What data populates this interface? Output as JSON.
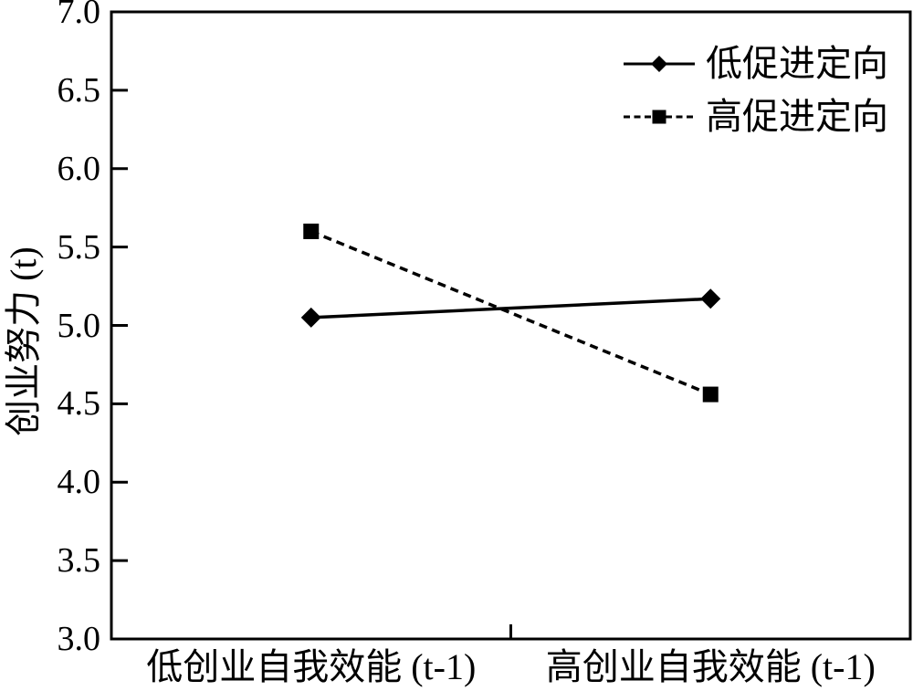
{
  "figure": {
    "background_color": "#ffffff",
    "axis_color": "#000000",
    "text_color": "#000000"
  },
  "chart_data": {
    "type": "line",
    "title": "",
    "xlabel": "",
    "ylabel": "创业努力 (t)",
    "categories": [
      "低创业自我效能 (t-1)",
      "高创业自我效能 (t-1)"
    ],
    "series": [
      {
        "name": "低促进定向",
        "values": [
          5.05,
          5.17
        ],
        "line_style": "solid",
        "marker": "diamond",
        "color": "#000000"
      },
      {
        "name": "高促进定向",
        "values": [
          5.6,
          4.56
        ],
        "line_style": "dashed",
        "marker": "square",
        "color": "#000000"
      }
    ],
    "ylim": [
      3.0,
      7.0
    ],
    "ytick_labels": [
      "3.0",
      "3.5",
      "4.0",
      "4.5",
      "5.0",
      "5.5",
      "6.0",
      "6.5",
      "7.0"
    ],
    "grid": false,
    "legend_position": "top-right-inside"
  }
}
